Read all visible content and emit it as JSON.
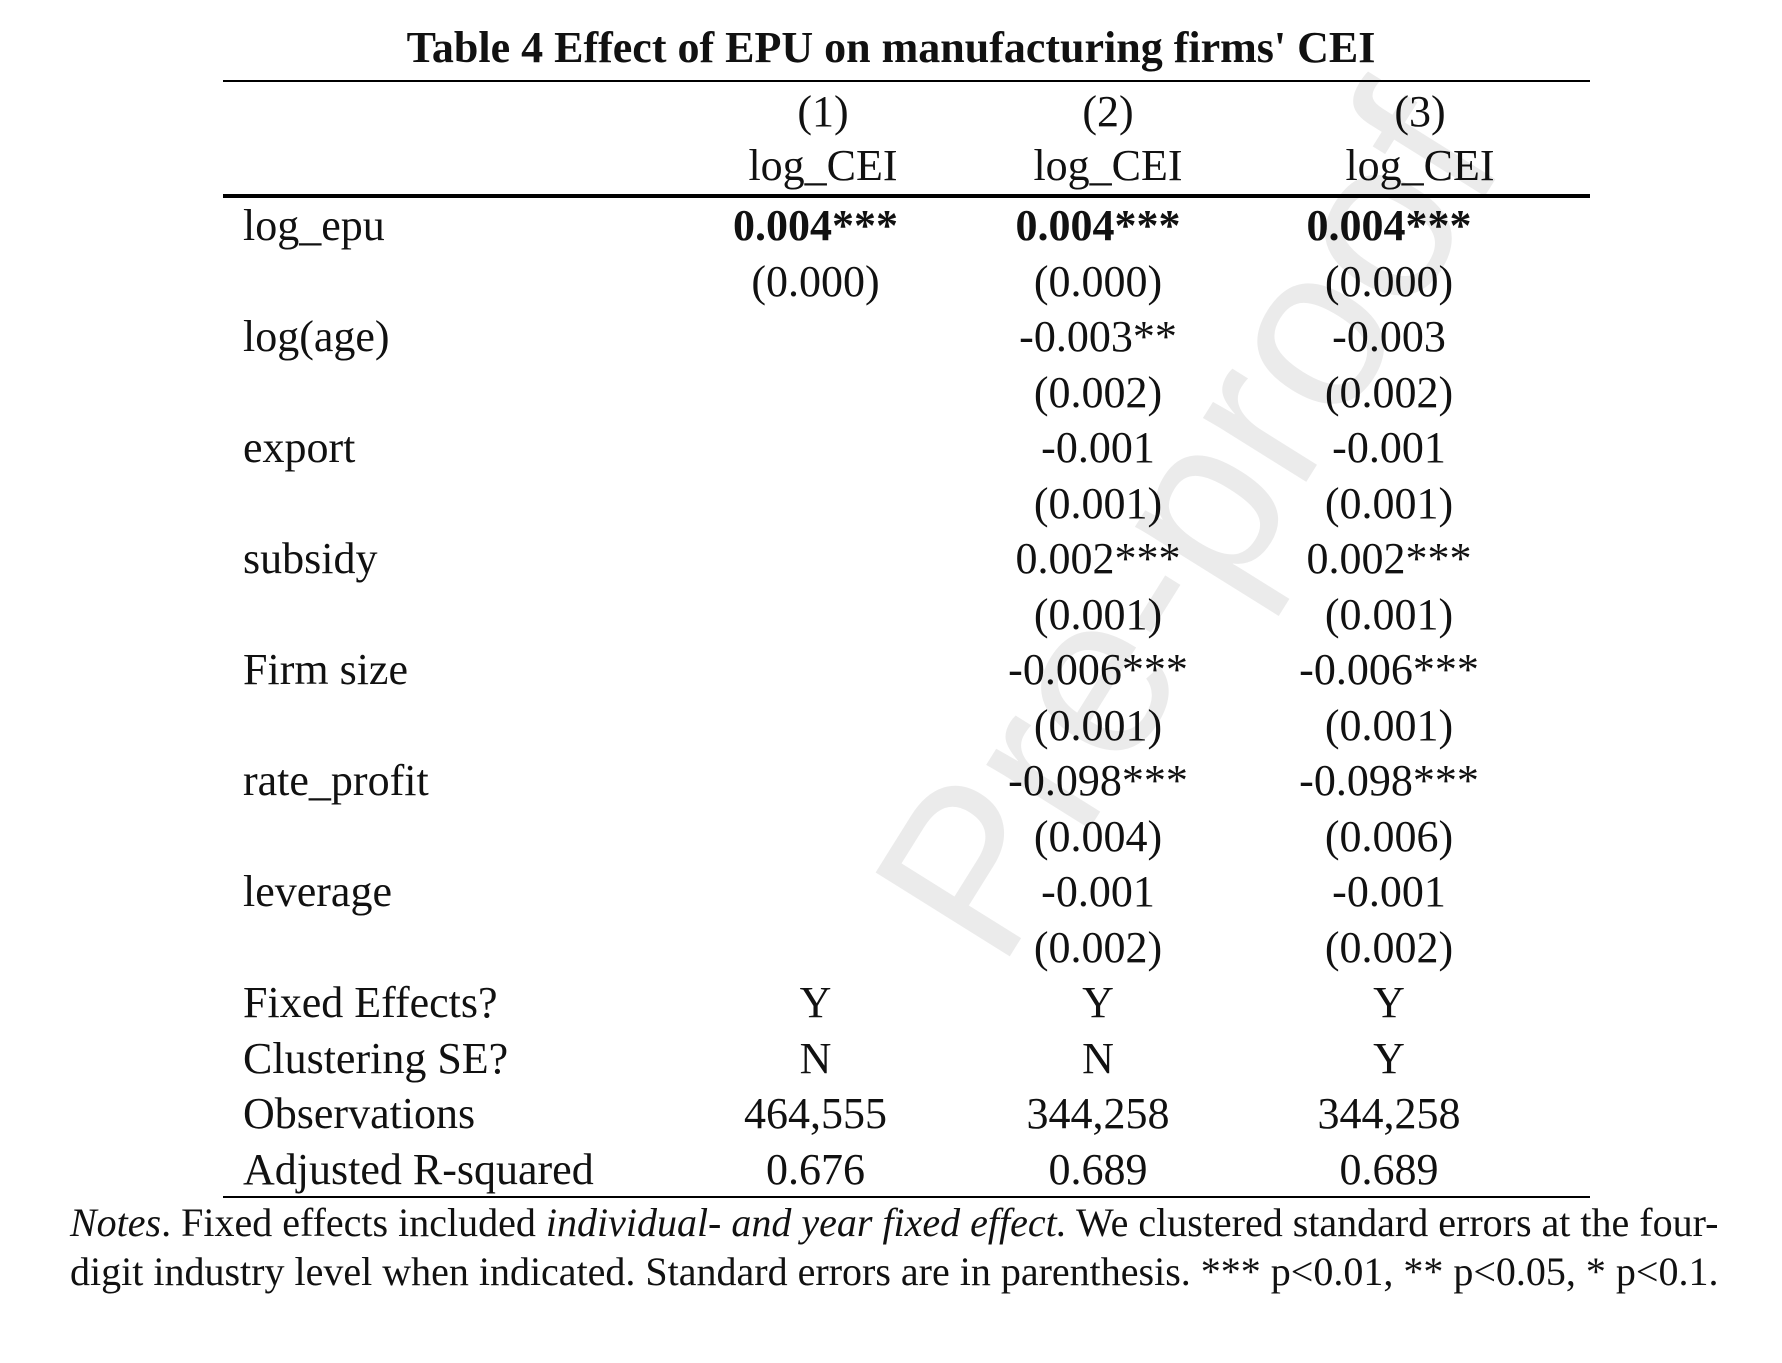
{
  "table": {
    "title": "Table 4 Effect of EPU on manufacturing firms' CEI",
    "columns": [
      {
        "number": "(1)",
        "depvar": "log_CEI"
      },
      {
        "number": "(2)",
        "depvar": "log_CEI"
      },
      {
        "number": "(3)",
        "depvar": "log_CEI"
      }
    ],
    "rows": [
      {
        "label": "log_epu",
        "values": [
          "0.004***",
          "0.004***",
          "0.004***"
        ],
        "bold": true
      },
      {
        "label": "",
        "values": [
          "(0.000)",
          "(0.000)",
          "(0.000)"
        ]
      },
      {
        "label": "log(age)",
        "values": [
          "",
          "-0.003**",
          "-0.003"
        ]
      },
      {
        "label": "",
        "values": [
          "",
          "(0.002)",
          "(0.002)"
        ]
      },
      {
        "label": "export",
        "values": [
          "",
          "-0.001",
          "-0.001"
        ]
      },
      {
        "label": "",
        "values": [
          "",
          "(0.001)",
          "(0.001)"
        ]
      },
      {
        "label": "subsidy",
        "values": [
          "",
          "0.002***",
          "0.002***"
        ]
      },
      {
        "label": "",
        "values": [
          "",
          "(0.001)",
          "(0.001)"
        ]
      },
      {
        "label": "Firm size",
        "values": [
          "",
          "-0.006***",
          "-0.006***"
        ]
      },
      {
        "label": "",
        "values": [
          "",
          "(0.001)",
          "(0.001)"
        ]
      },
      {
        "label": "rate_profit",
        "values": [
          "",
          "-0.098***",
          "-0.098***"
        ]
      },
      {
        "label": "",
        "values": [
          "",
          "(0.004)",
          "(0.006)"
        ]
      },
      {
        "label": "leverage",
        "values": [
          "",
          "-0.001",
          "-0.001"
        ]
      },
      {
        "label": "",
        "values": [
          "",
          "(0.002)",
          "(0.002)"
        ]
      },
      {
        "label": "Fixed Effects?",
        "values": [
          "Y",
          "Y",
          "Y"
        ]
      },
      {
        "label": "Clustering SE?",
        "values": [
          "N",
          "N",
          "Y"
        ]
      },
      {
        "label": "Observations",
        "values": [
          "464,555",
          "344,258",
          "344,258"
        ]
      },
      {
        "label": "Adjusted R-squared",
        "values": [
          "0.676",
          "0.689",
          "0.689"
        ]
      }
    ]
  },
  "notes": {
    "lead": "Notes",
    "part1": ". Fixed effects included ",
    "italic": "individual- and year fixed effect.",
    "part2": " We clustered standard errors at the four-digit industry level when indicated. Standard errors are in parenthesis. *** p<0.01, ** p<0.05, * p<0.1."
  },
  "watermark": "Pre-proof"
}
